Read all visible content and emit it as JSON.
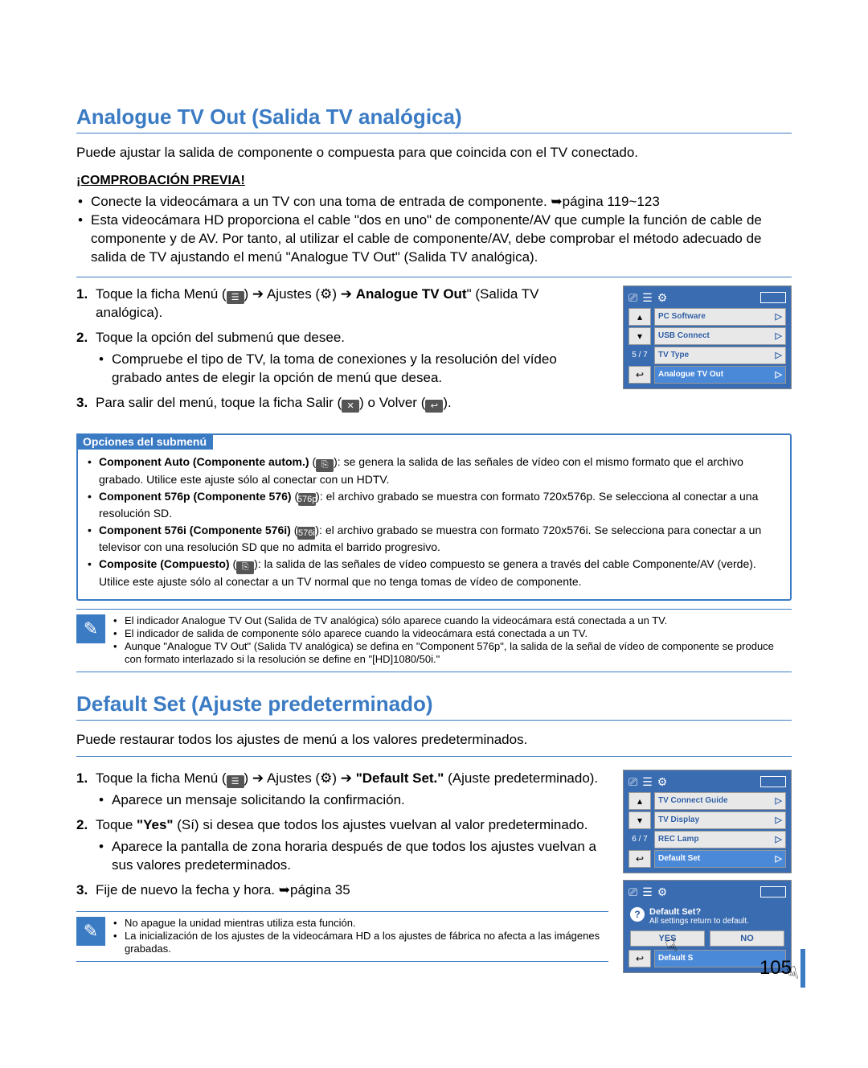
{
  "colors": {
    "accent": "#3b7bc4",
    "lcd_bg": "#3a6cb2",
    "lcd_item_bg": "#e8e8e8",
    "lcd_item_hl": "#4a88d8",
    "text": "#000000"
  },
  "page_number": "105",
  "section1": {
    "title": "Analogue TV Out (Salida TV analógica)",
    "intro": "Puede ajustar la salida de componente o compuesta para que coincida con el TV conectado.",
    "check_heading": "¡COMPROBACIÓN PREVIA!",
    "check_items": [
      "Conecte la videocámara a un TV con una toma de entrada de componente. ➥página 119~123",
      "Esta videocámara HD proporciona el cable \"dos en uno\" de componente/AV que cumple la función de cable de componente y de AV. Por tanto, al utilizar el cable de componente/AV, debe comprobar el método adecuado de salida de TV ajustando el menú \"Analogue TV Out\" (Salida TV analógica)."
    ],
    "step1_a": "Toque la ficha Menú (",
    "step1_b": ") ➔ Ajustes (",
    "step1_c": ") ➔ ",
    "step1_bold": "Analogue TV Out",
    "step1_d": "\" (Salida TV analógica).",
    "step2": "Toque la opción del submenú que desee.",
    "step2_sub": "Compruebe el tipo de TV, la toma de conexiones y la resolución del vídeo grabado antes de elegir la opción de menú que desea.",
    "step3_a": "Para salir del menú, toque la ficha Salir (",
    "step3_b": ") o Volver (",
    "step3_c": ")."
  },
  "lcd1": {
    "page": "5 / 7",
    "items": [
      {
        "label": "PC Software",
        "hl": false
      },
      {
        "label": "USB Connect",
        "hl": false
      },
      {
        "label": "TV Type",
        "hl": false
      },
      {
        "label": "Analogue TV Out",
        "hl": true
      }
    ]
  },
  "options": {
    "tab": "Opciones del submenú",
    "items": [
      {
        "bold": "Component Auto (Componente autom.)",
        "icon": "⎘",
        "text": ": se genera la salida de las señales de vídeo con el mismo formato que el archivo grabado. Utilice este ajuste sólo al conectar con un HDTV."
      },
      {
        "bold": "Component 576p (Componente 576)",
        "icon": "576p",
        "text": ": el archivo grabado se muestra con formato 720x576p. Se selecciona al conectar a una resolución SD."
      },
      {
        "bold": "Component 576i (Componente 576i)",
        "icon": "576i",
        "text": ": el archivo grabado se muestra con formato 720x576i. Se selecciona para conectar a un televisor con una resolución SD que no admita el barrido progresivo."
      },
      {
        "bold": "Composite (Compuesto)",
        "icon": "⎘",
        "text": ": la salida de las señales de vídeo compuesto se genera a través del cable Componente/AV (verde). Utilice este ajuste sólo al conectar a un TV normal que no tenga tomas de vídeo de componente."
      }
    ]
  },
  "note1": [
    "El indicador Analogue TV Out (Salida de TV analógica) sólo aparece cuando la videocámara está conectada a un TV.",
    "El indicador de salida de componente sólo aparece cuando la videocámara está conectada a un TV.",
    "Aunque \"Analogue TV Out\" (Salida TV analógica) se defina en \"Component 576p\", la salida de la señal de vídeo de componente se produce con formato interlazado si la resolución se define en \"[HD]1080/50i.\""
  ],
  "section2": {
    "title": "Default Set (Ajuste predeterminado)",
    "intro": "Puede restaurar todos los ajustes de menú a los valores predeterminados.",
    "step1_a": "Toque la ficha Menú (",
    "step1_b": ") ➔ Ajustes (",
    "step1_c": ") ➔ ",
    "step1_bold": "\"Default Set.\"",
    "step1_d": " (Ajuste predeterminado).",
    "step1_sub": "Aparece un mensaje solicitando la confirmación.",
    "step2_a": "Toque ",
    "step2_bold": "\"Yes\"",
    "step2_b": " (Sí) si desea que todos los ajustes vuelvan al valor predeterminado.",
    "step2_sub": "Aparece la pantalla de zona horaria después de que todos los ajustes vuelvan a sus valores predeterminados.",
    "step3": "Fije de nuevo la fecha y hora. ➥página 35"
  },
  "lcd2": {
    "page": "6 / 7",
    "items": [
      {
        "label": "TV Connect Guide",
        "hl": false
      },
      {
        "label": "TV Display",
        "hl": false
      },
      {
        "label": "REC Lamp",
        "hl": false
      },
      {
        "label": "Default Set",
        "hl": true
      }
    ]
  },
  "lcd3": {
    "q_title": "Default Set?",
    "q_text": "All settings return to default.",
    "yes": "YES",
    "no": "NO",
    "hidden": "Default S"
  },
  "note2": [
    "No apague la unidad mientras utiliza esta función.",
    "La inicialización de los ajustes de la videocámara HD a los ajustes de fábrica no afecta a las imágenes grabadas."
  ]
}
